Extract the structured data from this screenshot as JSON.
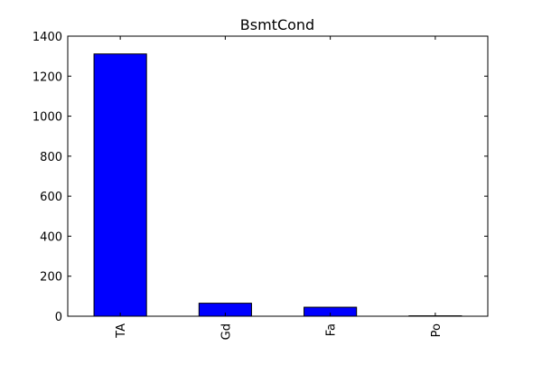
{
  "chart_data": {
    "type": "bar",
    "title": "BsmtCond",
    "xlabel": "",
    "ylabel": "",
    "categories": [
      "TA",
      "Gd",
      "Fa",
      "Po"
    ],
    "values": [
      1311,
      65,
      45,
      2
    ],
    "ylim": [
      0,
      1400
    ],
    "yticks": [
      0,
      200,
      400,
      600,
      800,
      1000,
      1200,
      1400
    ],
    "grid": false,
    "legend": "none",
    "bar_color": "#0000ff",
    "edge_color": "#000000"
  }
}
